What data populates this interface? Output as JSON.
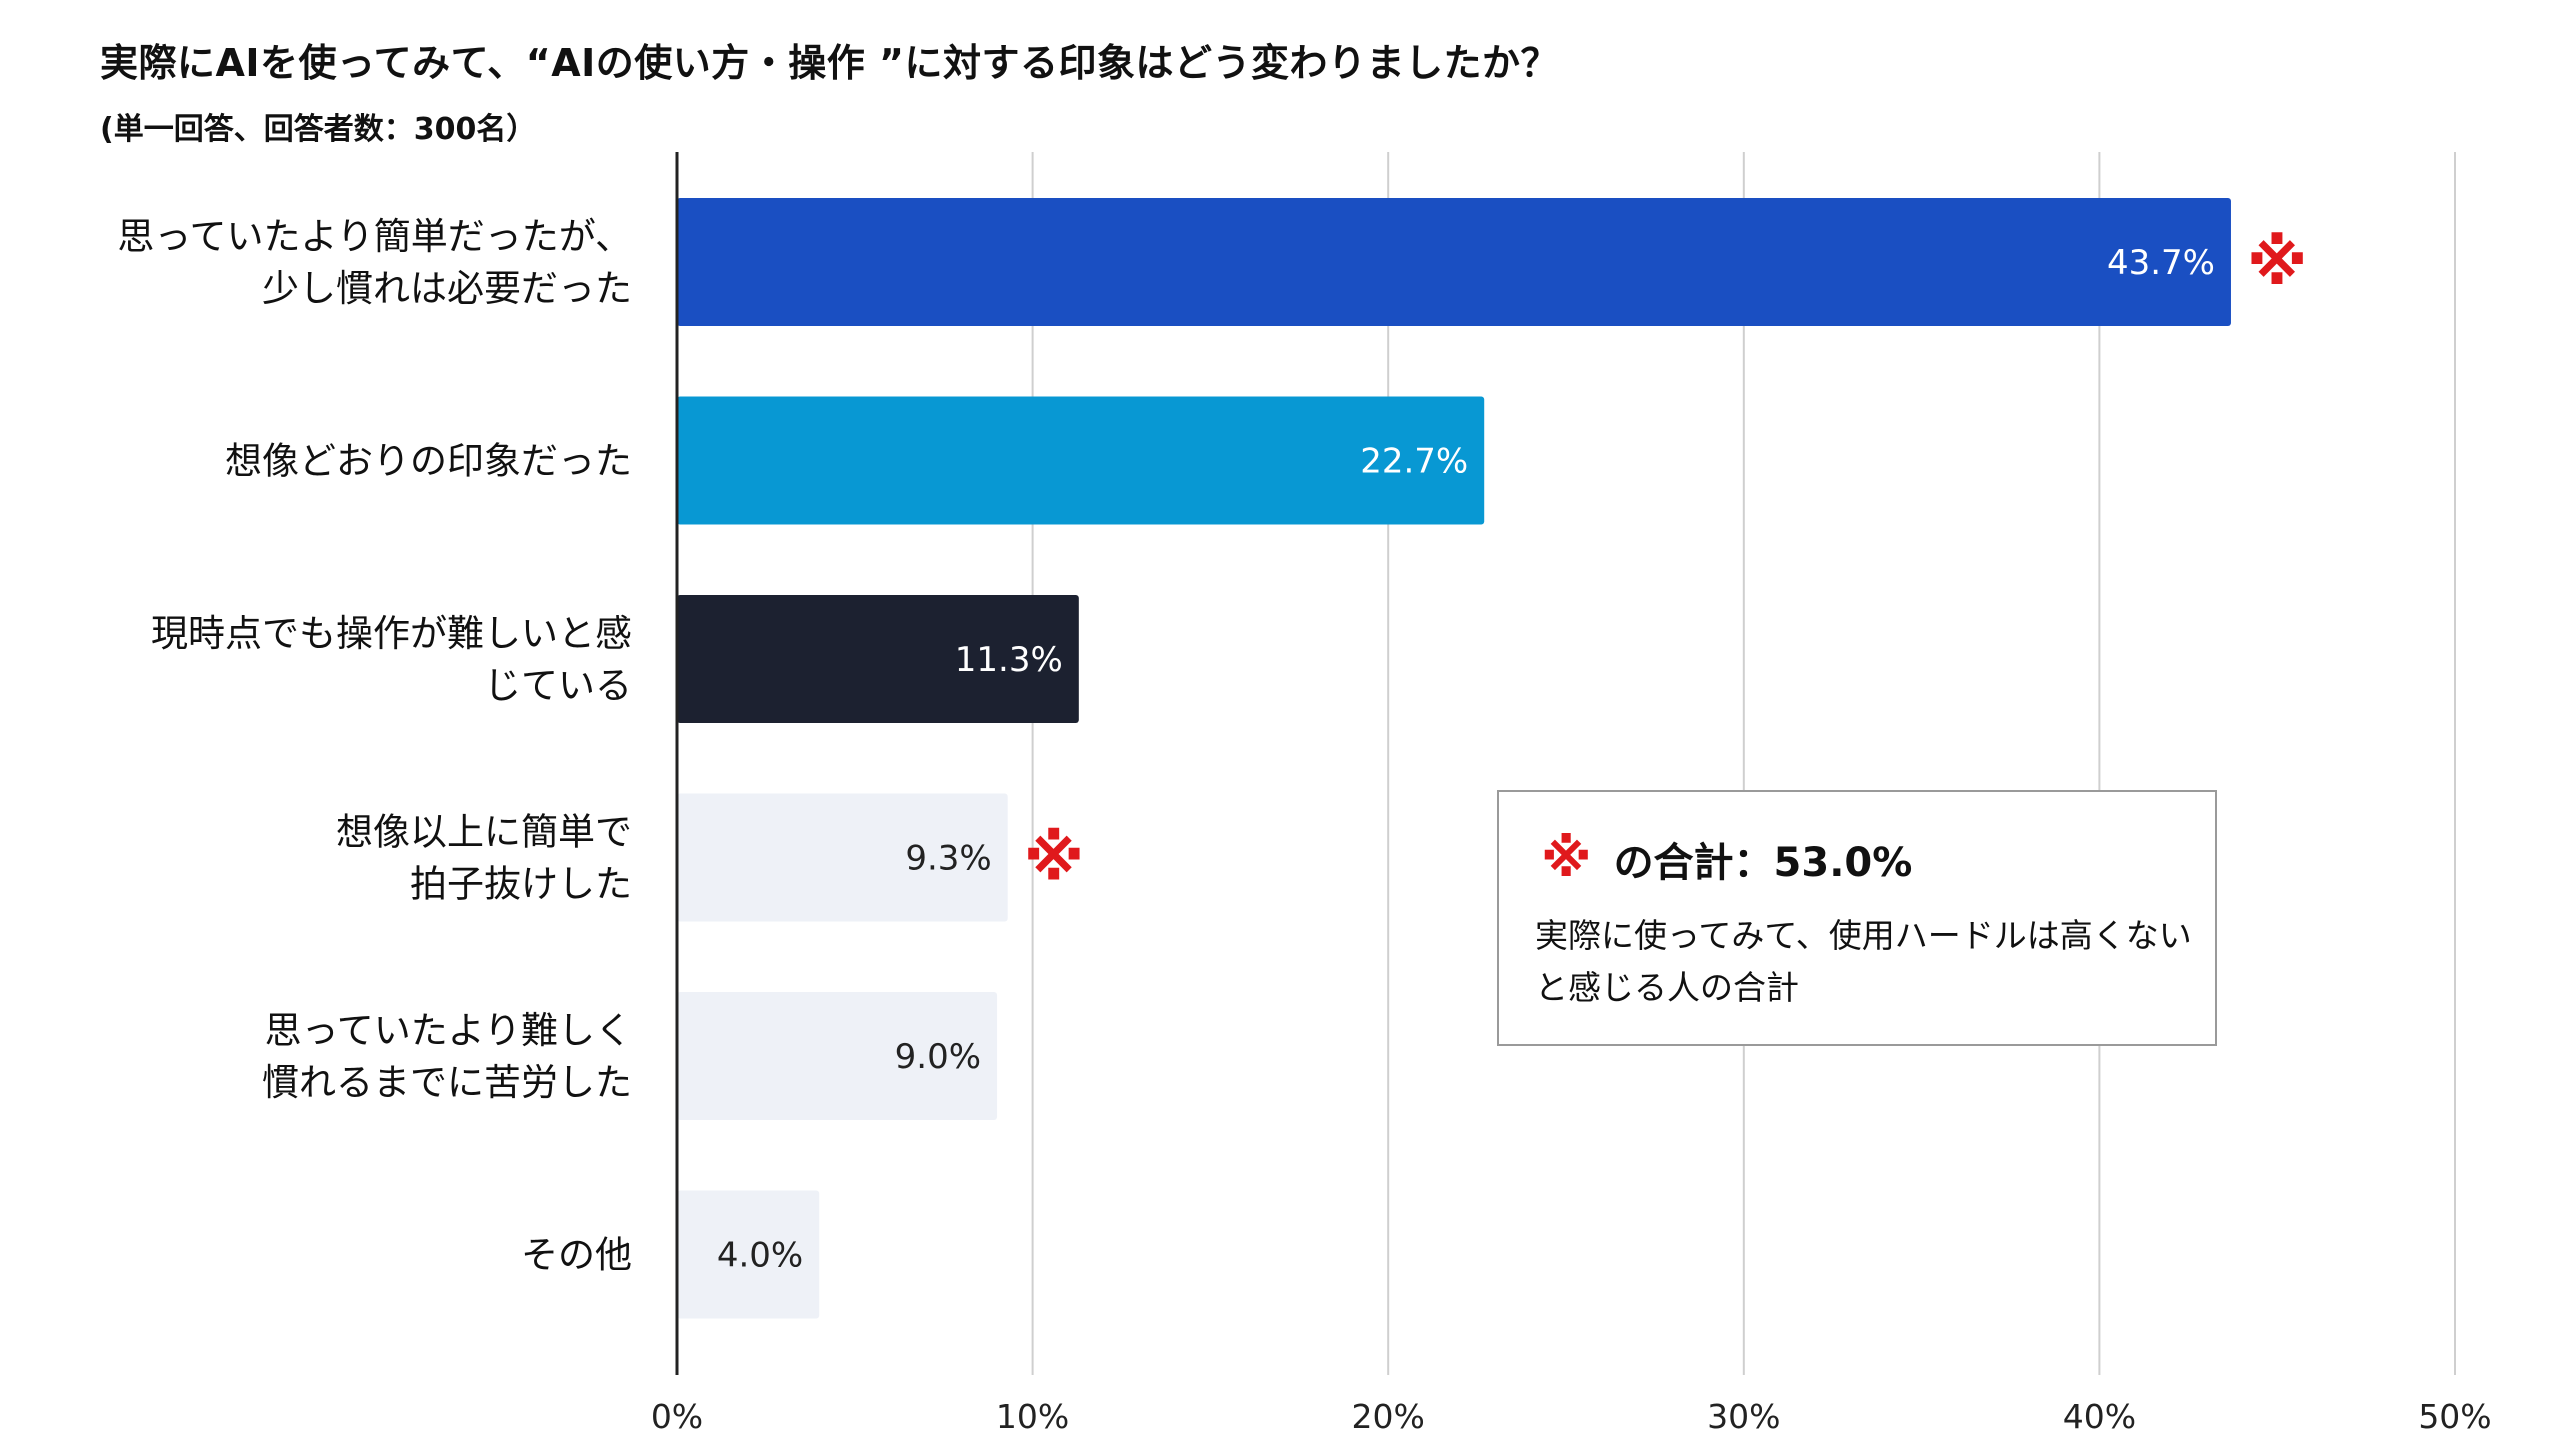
{
  "header": {
    "title": "実際にAIを使ってみて、“AIの使い方・操作 ”に対する印象はどう変わりましたか？",
    "subtitle": "(単一回答、回答者数：300名）"
  },
  "chart_data": {
    "type": "bar",
    "orientation": "horizontal",
    "categories": [
      [
        "思っていたより簡単だったが、",
        "少し慣れは必要だった"
      ],
      [
        "想像どおりの印象だった"
      ],
      [
        "現時点でも操作が難しいと感",
        "じている"
      ],
      [
        "想像以上に簡単で",
        "拍子抜けした"
      ],
      [
        "思っていたより難しく",
        "慣れるまでに苦労した"
      ],
      [
        "その他"
      ]
    ],
    "values": [
      43.7,
      22.7,
      11.3,
      9.3,
      9.0,
      4.0
    ],
    "value_labels": [
      "43.7%",
      "22.7%",
      "11.3%",
      "9.3%",
      "9.0%",
      "4.0%"
    ],
    "bar_colors": [
      "#1a4fc2",
      "#0898d3",
      "#1c2130",
      "#eef1f7",
      "#eef1f7",
      "#eef1f7"
    ],
    "label_colors": [
      "#ffffff",
      "#ffffff",
      "#ffffff",
      "#222222",
      "#222222",
      "#222222"
    ],
    "marked": [
      true,
      false,
      false,
      true,
      false,
      false
    ],
    "mark_symbol": "※",
    "mark_color": "#e0191c",
    "xlim": [
      0,
      50
    ],
    "ticks": [
      0,
      10,
      20,
      30,
      40,
      50
    ],
    "tick_labels": [
      "0%",
      "10%",
      "20%",
      "30%",
      "40%",
      "50%"
    ],
    "grid": true,
    "legend_position": "center-right"
  },
  "callout": {
    "mark": "※",
    "heading": "の合計：53.0%",
    "description": "実際に使ってみて、使用ハードルは高くないと感じる人の合計"
  }
}
